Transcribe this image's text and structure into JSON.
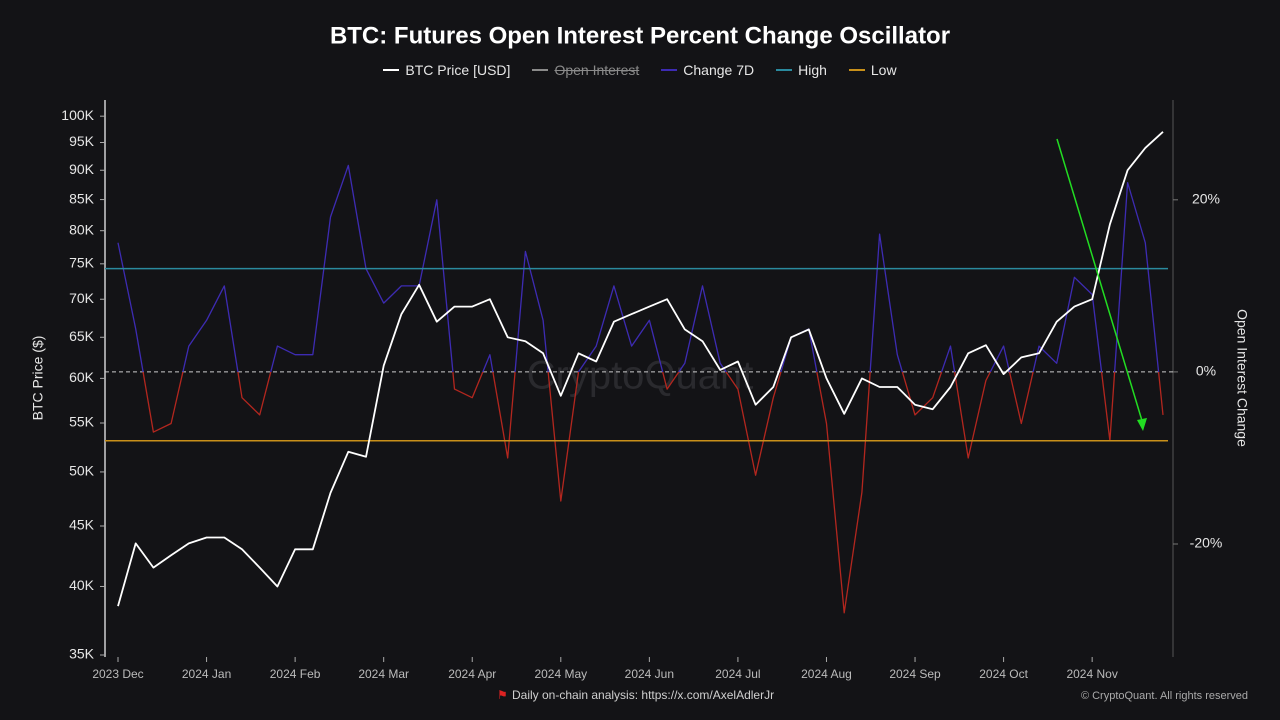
{
  "chart_data": {
    "type": "line",
    "title": "BTC: Futures Open Interest Percent Change Oscillator",
    "watermark": "CryptoQuant",
    "source": "Daily on-chain analysis: https://x.com/AxelAdlerJr",
    "copyright": "© CryptoQuant. All rights reserved",
    "y_label": "BTC Price ($)",
    "y2_label": "Open Interest Change",
    "log_scale": true,
    "categories": [
      "2023 Dec",
      null,
      null,
      null,
      null,
      "2024 Jan",
      null,
      null,
      null,
      null,
      "2024 Feb",
      null,
      null,
      null,
      null,
      "2024 Mar",
      null,
      null,
      null,
      null,
      "2024 Apr",
      null,
      null,
      null,
      null,
      "2024 May",
      null,
      null,
      null,
      null,
      "2024 Jun",
      null,
      null,
      null,
      null,
      "2024 Jul",
      null,
      null,
      null,
      null,
      "2024 Aug",
      null,
      null,
      null,
      null,
      "2024 Sep",
      null,
      null,
      null,
      null,
      "2024 Oct",
      null,
      null,
      null,
      null,
      "2024 Nov",
      null,
      null,
      null,
      null
    ],
    "series": [
      {
        "name": "BTC Price [USD]",
        "color": "#ffffff",
        "values": [
          38500,
          43500,
          41500,
          42500,
          43500,
          44000,
          44000,
          43000,
          41500,
          40000,
          43000,
          43000,
          48000,
          52000,
          51500,
          61500,
          68000,
          72000,
          67000,
          69000,
          69000,
          70000,
          65000,
          64500,
          63000,
          58000,
          63000,
          62000,
          67000,
          68000,
          69000,
          70000,
          66000,
          64500,
          61000,
          62000,
          57000,
          59000,
          65000,
          66000,
          60000,
          56000,
          60000,
          59000,
          59000,
          57000,
          56500,
          59000,
          63000,
          64000,
          60500,
          62500,
          63000,
          67000,
          69000,
          70000,
          81000,
          90000,
          94000,
          97000
        ]
      },
      {
        "name": "Open Interest",
        "color": "#8a8a8a",
        "visible": false
      },
      {
        "name": "Change 7D",
        "color": "#3d2bb3",
        "negative_color": "#b3261e",
        "axis": "y2",
        "values": [
          15,
          5,
          -7,
          -6,
          3,
          6,
          10,
          -3,
          -5,
          3,
          2,
          2,
          18,
          24,
          12,
          8,
          10,
          10,
          20,
          -2,
          -3,
          2,
          -10,
          14,
          6,
          -15,
          0,
          3,
          10,
          3,
          6,
          -2,
          1,
          10,
          1,
          -2,
          -12,
          -3,
          4,
          5,
          -6,
          -28,
          -14,
          16,
          2,
          -5,
          -3,
          3,
          -10,
          -1,
          3,
          -6,
          3,
          1,
          11,
          9,
          -8,
          22,
          15,
          -5
        ]
      },
      {
        "name": "High",
        "color": "#2a8a9e",
        "axis": "y2",
        "level": 12
      },
      {
        "name": "Low",
        "color": "#c8901a",
        "axis": "y2",
        "level": -8
      }
    ],
    "ylim": [
      35000,
      103200
    ],
    "yticks": [
      {
        "value": 35000,
        "label": "35K"
      },
      {
        "value": 40000,
        "label": "40K"
      },
      {
        "value": 45000,
        "label": "45K"
      },
      {
        "value": 50000,
        "label": "50K"
      },
      {
        "value": 55000,
        "label": "55K"
      },
      {
        "value": 60000,
        "label": "60K"
      },
      {
        "value": 65000,
        "label": "65K"
      },
      {
        "value": 70000,
        "label": "70K"
      },
      {
        "value": 75000,
        "label": "75K"
      },
      {
        "value": 80000,
        "label": "80K"
      },
      {
        "value": 85000,
        "label": "85K"
      },
      {
        "value": 90000,
        "label": "90K"
      },
      {
        "value": 95000,
        "label": "95K"
      },
      {
        "value": 100000,
        "label": "100K"
      }
    ],
    "y2lim": [
      -32.9,
      31.6
    ],
    "y2ticks": [
      {
        "value": -20,
        "label": "-20%"
      },
      {
        "value": 0,
        "label": "0%"
      },
      {
        "value": 20,
        "label": "20%"
      }
    ],
    "grid": false
  }
}
